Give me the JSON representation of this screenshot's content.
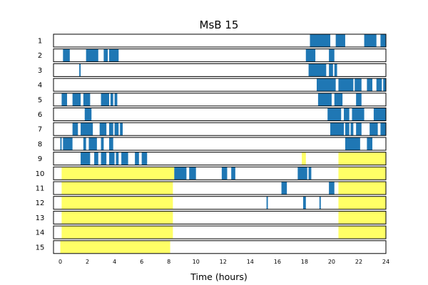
{
  "chart_data": {
    "type": "timeline",
    "title": "MsB 15",
    "xlabel": "Time (hours)",
    "ylabel": "",
    "xlim": [
      -0.5,
      24
    ],
    "xticks": [
      0,
      2,
      4,
      6,
      8,
      10,
      12,
      14,
      16,
      18,
      20,
      22,
      24
    ],
    "rows": [
      {
        "label": "1",
        "blue": [
          [
            18.4,
            19.9
          ],
          [
            20.3,
            21.0
          ],
          [
            22.4,
            23.3
          ],
          [
            23.6,
            24.0
          ]
        ],
        "yellow": []
      },
      {
        "label": "2",
        "blue": [
          [
            0.2,
            0.7
          ],
          [
            1.9,
            2.8
          ],
          [
            3.2,
            3.5
          ],
          [
            3.6,
            4.3
          ],
          [
            18.1,
            18.8
          ],
          [
            19.8,
            20.2
          ]
        ],
        "yellow": []
      },
      {
        "label": "3",
        "blue": [
          [
            1.4,
            1.5
          ],
          [
            18.3,
            19.6
          ],
          [
            19.8,
            20.1
          ],
          [
            20.2,
            20.4
          ]
        ],
        "yellow": []
      },
      {
        "label": "4",
        "blue": [
          [
            18.9,
            20.3
          ],
          [
            20.5,
            21.6
          ],
          [
            21.7,
            22.2
          ],
          [
            22.6,
            23.0
          ],
          [
            23.3,
            23.7
          ],
          [
            23.8,
            24.0
          ]
        ],
        "yellow": []
      },
      {
        "label": "5",
        "blue": [
          [
            0.1,
            0.5
          ],
          [
            0.9,
            1.5
          ],
          [
            1.7,
            2.2
          ],
          [
            3.0,
            3.6
          ],
          [
            3.7,
            3.9
          ],
          [
            4.0,
            4.2
          ],
          [
            19.0,
            20.0
          ],
          [
            20.2,
            20.8
          ],
          [
            21.8,
            22.2
          ]
        ],
        "yellow": []
      },
      {
        "label": "6",
        "blue": [
          [
            1.8,
            2.3
          ],
          [
            19.7,
            20.7
          ],
          [
            20.9,
            21.3
          ],
          [
            21.5,
            22.4
          ],
          [
            23.1,
            24.0
          ]
        ],
        "yellow": []
      },
      {
        "label": "7",
        "blue": [
          [
            0.9,
            1.3
          ],
          [
            1.5,
            2.4
          ],
          [
            2.9,
            3.4
          ],
          [
            3.6,
            3.9
          ],
          [
            4.0,
            4.3
          ],
          [
            4.4,
            4.6
          ],
          [
            19.9,
            20.9
          ],
          [
            21.0,
            21.3
          ],
          [
            21.4,
            21.6
          ],
          [
            21.8,
            22.2
          ],
          [
            22.8,
            23.4
          ],
          [
            23.6,
            24.0
          ]
        ],
        "yellow": []
      },
      {
        "label": "8",
        "blue": [
          [
            0.0,
            0.1
          ],
          [
            0.2,
            0.9
          ],
          [
            1.7,
            1.9
          ],
          [
            2.1,
            2.7
          ],
          [
            3.0,
            3.2
          ],
          [
            3.6,
            3.9
          ],
          [
            21.0,
            22.1
          ],
          [
            22.6,
            23.0
          ]
        ],
        "yellow": []
      },
      {
        "label": "9",
        "blue": [
          [
            1.5,
            2.2
          ],
          [
            2.5,
            2.8
          ],
          [
            3.0,
            3.4
          ],
          [
            3.6,
            4.0
          ],
          [
            4.1,
            4.3
          ],
          [
            4.5,
            5.0
          ],
          [
            5.5,
            5.8
          ],
          [
            6.0,
            6.4
          ]
        ],
        "yellow": [
          [
            17.8,
            18.1
          ],
          [
            20.5,
            24.0
          ]
        ]
      },
      {
        "label": "10",
        "blue": [
          [
            8.4,
            9.3
          ],
          [
            9.5,
            10.0
          ],
          [
            11.9,
            12.3
          ],
          [
            12.6,
            12.9
          ],
          [
            17.5,
            18.2
          ],
          [
            18.3,
            18.5
          ]
        ],
        "yellow": [
          [
            0.1,
            8.4
          ],
          [
            20.5,
            24.0
          ]
        ]
      },
      {
        "label": "11",
        "blue": [
          [
            16.3,
            16.7
          ],
          [
            19.8,
            20.2
          ]
        ],
        "yellow": [
          [
            0.1,
            8.3
          ],
          [
            20.5,
            24.0
          ]
        ]
      },
      {
        "label": "12",
        "blue": [
          [
            15.2,
            15.3
          ],
          [
            17.9,
            18.1
          ],
          [
            19.1,
            19.2
          ]
        ],
        "yellow": [
          [
            0.1,
            8.3
          ],
          [
            20.5,
            24.0
          ]
        ]
      },
      {
        "label": "13",
        "blue": [],
        "yellow": [
          [
            0.1,
            8.3
          ],
          [
            20.5,
            24.0
          ]
        ]
      },
      {
        "label": "14",
        "blue": [],
        "yellow": [
          [
            0.1,
            8.3
          ],
          [
            20.5,
            24.0
          ]
        ]
      },
      {
        "label": "15",
        "blue": [],
        "yellow": [
          [
            0.0,
            8.1
          ]
        ]
      }
    ]
  },
  "colors": {
    "activity": "#1f77b4",
    "highlight": "#ffff66",
    "frame": "#000000"
  }
}
